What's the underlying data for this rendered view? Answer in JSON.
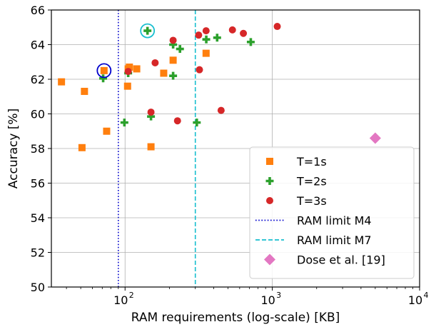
{
  "chart_data": {
    "type": "scatter",
    "title": "",
    "xlabel": "RAM requirements (log-scale) [KB]",
    "ylabel": "Accuracy [%]",
    "x_scale": "log",
    "xlim": [
      31.6,
      10000
    ],
    "ylim": [
      50,
      66
    ],
    "x_ticks": [
      {
        "value": 100,
        "label_base": "10",
        "label_exp": "2"
      },
      {
        "value": 1000,
        "label_base": "10",
        "label_exp": "3"
      },
      {
        "value": 10000,
        "label_base": "10",
        "label_exp": "4"
      }
    ],
    "y_ticks": [
      50,
      52,
      54,
      56,
      58,
      60,
      62,
      64,
      66
    ],
    "grid": true,
    "legend_position": "lower-right",
    "series": [
      {
        "name": "T=1s",
        "marker": "square",
        "color": "#ff7f0e",
        "points": [
          [
            37,
            61.85
          ],
          [
            51,
            58.05
          ],
          [
            53,
            61.3
          ],
          [
            72,
            62.5
          ],
          [
            75,
            59.0
          ],
          [
            104,
            61.6
          ],
          [
            105,
            62.6
          ],
          [
            107,
            62.7
          ],
          [
            120,
            62.6
          ],
          [
            150,
            58.1
          ],
          [
            183,
            62.35
          ],
          [
            212,
            63.1
          ],
          [
            355,
            63.5
          ]
        ]
      },
      {
        "name": "T=2s",
        "marker": "plus",
        "color": "#2ca02c",
        "points": [
          [
            71,
            62.05
          ],
          [
            99,
            59.5
          ],
          [
            105,
            62.35
          ],
          [
            142,
            64.8
          ],
          [
            150,
            59.85
          ],
          [
            212,
            64.0
          ],
          [
            212,
            62.2
          ],
          [
            236,
            63.75
          ],
          [
            307,
            59.5
          ],
          [
            356,
            64.3
          ],
          [
            422,
            64.4
          ],
          [
            714,
            64.15
          ]
        ]
      },
      {
        "name": "T=3s",
        "marker": "circle",
        "color": "#d62728",
        "points": [
          [
            105,
            62.45
          ],
          [
            150,
            60.1
          ],
          [
            160,
            62.95
          ],
          [
            212,
            64.25
          ],
          [
            227,
            59.6
          ],
          [
            316,
            64.55
          ],
          [
            320,
            62.55
          ],
          [
            355,
            64.8
          ],
          [
            449,
            60.2
          ],
          [
            536,
            64.85
          ],
          [
            636,
            64.65
          ],
          [
            1080,
            65.05
          ]
        ]
      },
      {
        "name": "RAM limit M4",
        "type": "vline",
        "x": 90,
        "style": "dotted",
        "color": "#0000cc"
      },
      {
        "name": "RAM limit M7",
        "type": "vline",
        "x": 300,
        "style": "dashed",
        "color": "#17becf"
      },
      {
        "name": "Dose et al. [19]",
        "marker": "diamond",
        "color": "#e377c2",
        "points": [
          [
            5000,
            58.6
          ]
        ]
      }
    ],
    "highlights": [
      {
        "x": 72,
        "y": 62.5,
        "color": "#0000cc"
      },
      {
        "x": 142,
        "y": 64.8,
        "color": "#17becf"
      }
    ]
  }
}
